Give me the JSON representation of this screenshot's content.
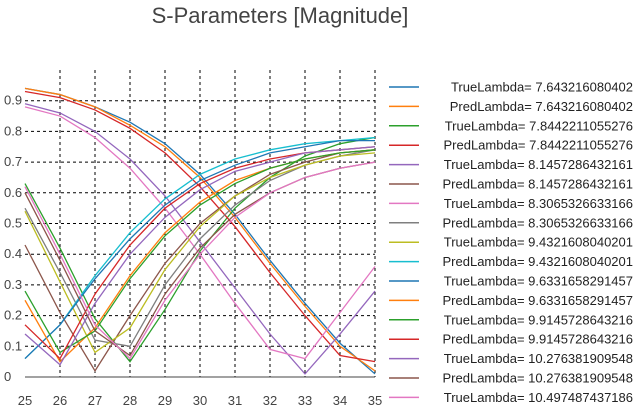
{
  "chart_data": {
    "type": "line",
    "title": "S-Parameters [Magnitude]",
    "xlabel": "",
    "ylabel": "",
    "xlim": [
      25,
      35
    ],
    "ylim": [
      0,
      1
    ],
    "xticks": [
      25,
      26,
      27,
      28,
      29,
      30,
      31,
      32,
      33,
      34,
      35
    ],
    "yticks": [
      0,
      0.1,
      0.2,
      0.3,
      0.4,
      0.5,
      0.6,
      0.7,
      0.8,
      0.9
    ],
    "grid": "dashed",
    "legend_position": "right",
    "x": [
      25,
      26,
      27,
      28,
      29,
      30,
      31,
      32,
      33,
      34,
      35
    ],
    "series": [
      {
        "name": "TrueLambda= 7.643216080402",
        "color": "#1f77b4",
        "values": [
          0.94,
          0.92,
          0.88,
          0.83,
          0.76,
          0.66,
          0.53,
          0.38,
          0.24,
          0.11,
          0.01
        ]
      },
      {
        "name": "PredLambda= 7.643216080402",
        "color": "#ff7f0e",
        "values": [
          0.94,
          0.92,
          0.88,
          0.82,
          0.75,
          0.65,
          0.52,
          0.37,
          0.23,
          0.1,
          0.02
        ]
      },
      {
        "name": "TrueLambda= 7.8442211055276",
        "color": "#2ca02c",
        "values": [
          0.63,
          0.42,
          0.19,
          0.05,
          0.22,
          0.41,
          0.55,
          0.65,
          0.72,
          0.76,
          0.78
        ]
      },
      {
        "name": "PredLambda= 7.8442211055276",
        "color": "#d62728",
        "values": [
          0.93,
          0.91,
          0.87,
          0.81,
          0.73,
          0.62,
          0.49,
          0.34,
          0.2,
          0.07,
          0.05
        ]
      },
      {
        "name": "TrueLambda= 8.1457286432161",
        "color": "#9467bd",
        "values": [
          0.89,
          0.86,
          0.8,
          0.71,
          0.59,
          0.44,
          0.29,
          0.14,
          0.01,
          0.14,
          0.28
        ]
      },
      {
        "name": "PredLambda= 8.1457286432161",
        "color": "#8c564b",
        "values": [
          0.43,
          0.21,
          0.02,
          0.2,
          0.37,
          0.5,
          0.59,
          0.66,
          0.7,
          0.73,
          0.74
        ]
      },
      {
        "name": "TrueLambda= 8.3065326633166",
        "color": "#e377c2",
        "values": [
          0.88,
          0.85,
          0.78,
          0.68,
          0.55,
          0.4,
          0.24,
          0.09,
          0.06,
          0.21,
          0.36
        ]
      },
      {
        "name": "PredLambda= 8.3065326633166",
        "color": "#7f7f7f",
        "values": [
          0.55,
          0.34,
          0.12,
          0.1,
          0.3,
          0.45,
          0.56,
          0.64,
          0.69,
          0.72,
          0.74
        ]
      },
      {
        "name": "TrueLambda= 9.4321608040201",
        "color": "#bcbd22",
        "values": [
          0.54,
          0.31,
          0.08,
          0.16,
          0.35,
          0.49,
          0.59,
          0.65,
          0.69,
          0.72,
          0.73
        ]
      },
      {
        "name": "PredLambda= 9.4321608040201",
        "color": "#17becf",
        "values": [
          0.06,
          0.17,
          0.33,
          0.47,
          0.58,
          0.66,
          0.71,
          0.74,
          0.76,
          0.77,
          0.78
        ]
      },
      {
        "name": "TrueLambda= 9.6331658291457",
        "color": "#1f77b4",
        "values": [
          0.06,
          0.17,
          0.32,
          0.45,
          0.56,
          0.64,
          0.69,
          0.73,
          0.75,
          0.77,
          0.77
        ]
      },
      {
        "name": "PredLambda= 9.6331658291457",
        "color": "#ff7f0e",
        "values": [
          0.25,
          0.05,
          0.16,
          0.33,
          0.47,
          0.57,
          0.64,
          0.68,
          0.71,
          0.73,
          0.74
        ]
      },
      {
        "name": "TrueLambda= 9.9145728643216",
        "color": "#2ca02c",
        "values": [
          0.28,
          0.08,
          0.15,
          0.32,
          0.46,
          0.56,
          0.63,
          0.68,
          0.71,
          0.73,
          0.74
        ]
      },
      {
        "name": "PredLambda= 9.9145728643216",
        "color": "#d62728",
        "values": [
          0.17,
          0.06,
          0.27,
          0.43,
          0.55,
          0.63,
          0.68,
          0.71,
          0.73,
          0.74,
          0.75
        ]
      },
      {
        "name": "TrueLambda= 10.276381909548",
        "color": "#9467bd",
        "values": [
          0.14,
          0.04,
          0.24,
          0.4,
          0.52,
          0.61,
          0.67,
          0.7,
          0.73,
          0.74,
          0.75
        ]
      },
      {
        "name": "PredLambda= 10.276381909548",
        "color": "#8c564b",
        "values": [
          0.6,
          0.38,
          0.15,
          0.07,
          0.27,
          0.42,
          0.53,
          0.6,
          0.65,
          0.68,
          0.7
        ]
      },
      {
        "name": "TrueLambda= 10.497487437186",
        "color": "#e377c2",
        "values": [
          0.62,
          0.4,
          0.17,
          0.06,
          0.25,
          0.4,
          0.52,
          0.6,
          0.65,
          0.68,
          0.7
        ]
      }
    ]
  }
}
